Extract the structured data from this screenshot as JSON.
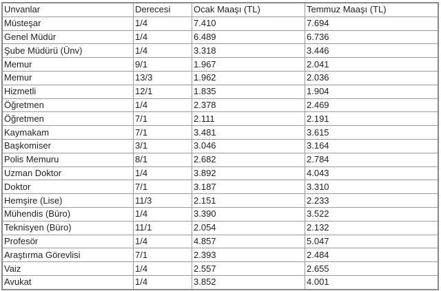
{
  "table": {
    "headers": [
      "Unvanlar",
      "Derecesi",
      "Ocak Maaşı (TL)",
      "Temmuz Maaşı (TL)"
    ],
    "rows": [
      [
        "Müsteşar",
        "1/4",
        "7.410",
        "7.694"
      ],
      [
        "Genel Müdür",
        "1/4",
        "6.489",
        "6.736"
      ],
      [
        "Şube Müdürü (Ünv)",
        "1/4",
        "3.318",
        "3.446"
      ],
      [
        "Memur",
        "9/1",
        "1.967",
        "2.041"
      ],
      [
        "Memur",
        "13/3",
        "1.962",
        "2.036"
      ],
      [
        "Hizmetli",
        "12/1",
        "1.835",
        "1.904"
      ],
      [
        "Öğretmen",
        "1/4",
        "2.378",
        "2.469"
      ],
      [
        "Öğretmen",
        "7/1",
        "2.111",
        "2.191"
      ],
      [
        "Kaymakam",
        "7/1",
        "3.481",
        "3.615"
      ],
      [
        "Başkomiser",
        "3/1",
        "3.046",
        "3.164"
      ],
      [
        "Polis Memuru",
        "8/1",
        "2.682",
        "2.784"
      ],
      [
        "Uzman Doktor",
        "1/4",
        "3.892",
        "4.043"
      ],
      [
        "Doktor",
        "7/1",
        "3.187",
        "3.310"
      ],
      [
        "Hemşire (Lise)",
        "11/3",
        "2.151",
        "2.233"
      ],
      [
        "Mühendis (Büro)",
        "1/4",
        "3.390",
        "3.522"
      ],
      [
        "Teknisyen (Büro)",
        "11/1",
        "2.054",
        "2.132"
      ],
      [
        "Profesör",
        "1/4",
        "4.857",
        "5.047"
      ],
      [
        "Araştırma Görevlisi",
        "7/1",
        "2.393",
        "2.484"
      ],
      [
        "Vaiz",
        "1/4",
        "2.557",
        "2.655"
      ],
      [
        "Avukat",
        "1/4",
        "3.852",
        "4.001"
      ]
    ]
  }
}
